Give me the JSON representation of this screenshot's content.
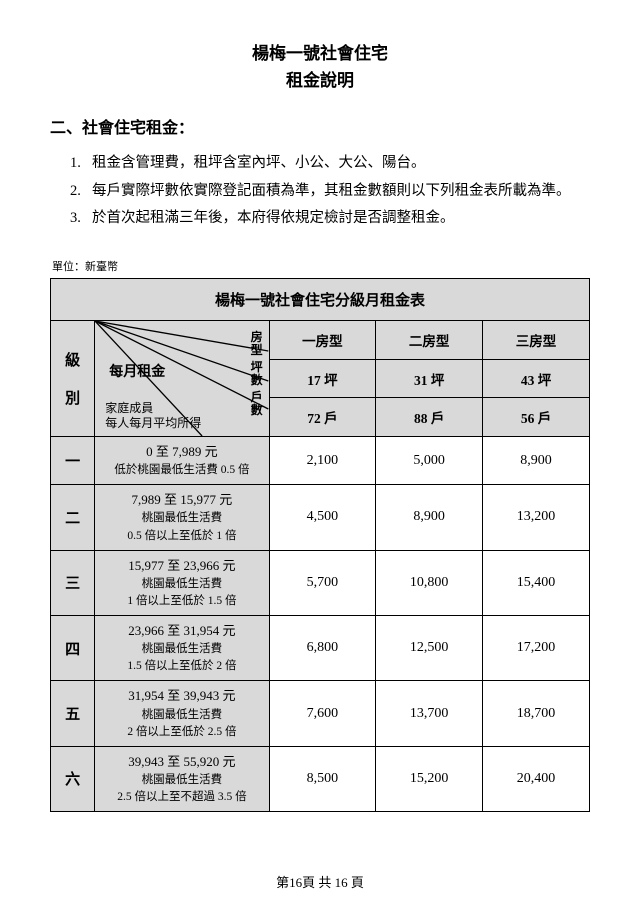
{
  "title": {
    "line1": "楊梅一號社會住宅",
    "line2": "租金說明"
  },
  "section_heading": "二、社會住宅租金：",
  "notes": [
    {
      "num": "1.",
      "text": "租金含管理費，租坪含室內坪、小公、大公、陽台。"
    },
    {
      "num": "2.",
      "text": "每戶實際坪數依實際登記面積為準，其租金數額則以下列租金表所載為準。"
    },
    {
      "num": "3.",
      "text": "於首次起租滿三年後，本府得依規定檢討是否調整租金。"
    }
  ],
  "unit_label": "單位：新臺幣",
  "table": {
    "title": "楊梅一號社會住宅分級月租金表",
    "diag_labels": {
      "level": "級\n別",
      "rent": "每月租金",
      "roomtype": "房型",
      "ping": "坪數",
      "units": "戶數",
      "member": "家庭成員\n每人每月平均所得"
    },
    "room_headers": [
      "一房型",
      "二房型",
      "三房型"
    ],
    "ping_row": [
      "17 坪",
      "31 坪",
      "43 坪"
    ],
    "units_row": [
      "72 戶",
      "88 戶",
      "56 戶"
    ],
    "tiers": [
      {
        "level": "一",
        "range": "0 至 7,989 元",
        "note": "低於桃園最低生活費 0.5 倍",
        "vals": [
          "2,100",
          "5,000",
          "8,900"
        ]
      },
      {
        "level": "二",
        "range": "7,989 至 15,977 元",
        "note": "桃園最低生活費\n0.5 倍以上至低於 1 倍",
        "vals": [
          "4,500",
          "8,900",
          "13,200"
        ]
      },
      {
        "level": "三",
        "range": "15,977 至 23,966 元",
        "note": "桃園最低生活費\n1 倍以上至低於 1.5 倍",
        "vals": [
          "5,700",
          "10,800",
          "15,400"
        ]
      },
      {
        "level": "四",
        "range": "23,966 至 31,954 元",
        "note": "桃園最低生活費\n1.5 倍以上至低於 2 倍",
        "vals": [
          "6,800",
          "12,500",
          "17,200"
        ]
      },
      {
        "level": "五",
        "range": "31,954 至 39,943 元",
        "note": "桃園最低生活費\n2 倍以上至低於 2.5 倍",
        "vals": [
          "7,600",
          "13,700",
          "18,700"
        ]
      },
      {
        "level": "六",
        "range": "39,943 至 55,920 元",
        "note": "桃園最低生活費\n2.5 倍以上至不超過 3.5 倍",
        "vals": [
          "8,500",
          "15,200",
          "20,400"
        ]
      }
    ]
  },
  "footer": "第16頁 共 16 頁"
}
